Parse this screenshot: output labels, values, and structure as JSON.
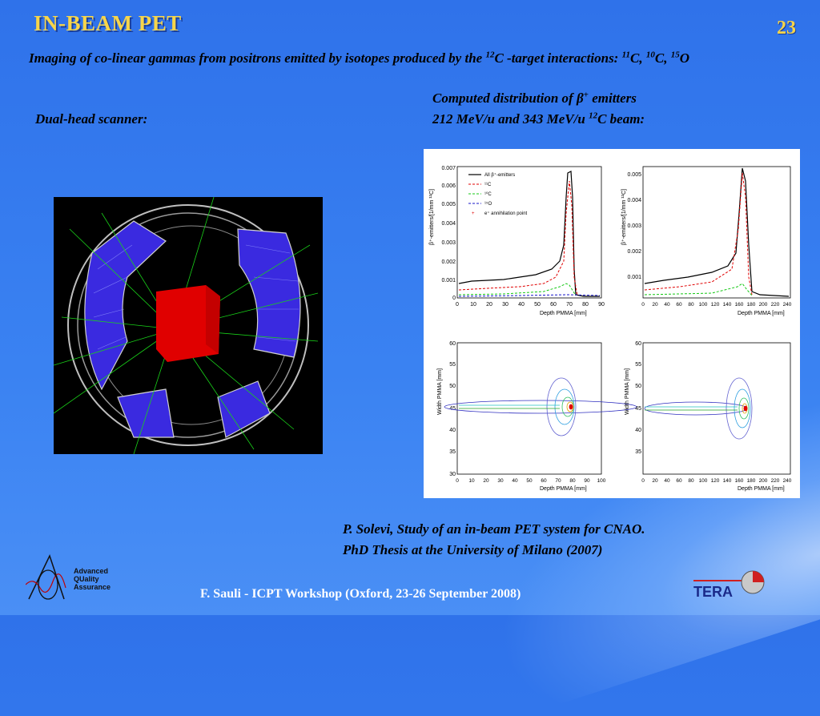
{
  "slide": {
    "title": "IN-BEAM PET",
    "number": "23",
    "intro_text": "Imaging of co-linear gammas from positrons emitted by isotopes produced by the ",
    "intro_sup1": "12",
    "intro_text2": "C -target interactions: ",
    "iso1_sup": "11",
    "iso1": "C, ",
    "iso2_sup": "10",
    "iso2": "C, ",
    "iso3_sup": "15",
    "iso3": "O",
    "computed_line1_a": "Computed distribution of ",
    "beta": "β",
    "beta_sup": "+",
    "computed_line1_b": " emitters",
    "computed_line2_a": "212 MeV/u and 343 MeV/u ",
    "computed_sup": "12",
    "computed_line2_b": "C  beam:",
    "dual_head": "Dual-head scanner:",
    "reference_line1": "P. Solevi, Study of an in-beam PET system for CNAO.",
    "reference_line2": "PhD Thesis at the University of Milano (2007)",
    "footer": "F. Sauli - ICPT Workshop (Oxford, 23-26 September 2008)"
  },
  "logos": {
    "aqa_line1": "Advanced",
    "aqa_line2": "QUality",
    "aqa_line3": "Assurance",
    "tera": "TERA"
  },
  "colors": {
    "title": "#f7d54a",
    "background": "#3a82f2",
    "detector": "#3a2ae0",
    "target": "#e00000",
    "rays": "#19d219"
  },
  "plots": {
    "tl": {
      "ylabel": "β⁺-emitters/[1/mm ¹²C]",
      "xlabel": "Depth PMMA [mm]",
      "yticks": [
        "0",
        "0.001",
        "0.002",
        "0.003",
        "0.004",
        "0.005",
        "0.006",
        "0.007"
      ],
      "xticks": [
        "0",
        "10",
        "20",
        "30",
        "40",
        "50",
        "60",
        "70",
        "80",
        "90"
      ],
      "legend": [
        "All β⁺-emitters",
        "¹¹C",
        "¹⁰C",
        "¹⁵O",
        "e⁺ annihilation point"
      ]
    },
    "tr": {
      "ylabel": "β⁺-emitters/[1/mm ¹²C]",
      "xlabel": "Depth PMMA [mm]",
      "yticks": [
        "0.001",
        "0.002",
        "0.003",
        "0.004",
        "0.005"
      ],
      "xticks": [
        "0",
        "20",
        "40",
        "60",
        "80",
        "100",
        "120",
        "140",
        "160",
        "180",
        "200",
        "220",
        "240"
      ]
    },
    "bl": {
      "ylabel": "Width PMMA [mm]",
      "xlabel": "Depth PMMA [mm]",
      "yticks": [
        "30",
        "35",
        "40",
        "45",
        "50",
        "55",
        "60"
      ],
      "xticks": [
        "0",
        "10",
        "20",
        "30",
        "40",
        "50",
        "60",
        "70",
        "80",
        "90",
        "100"
      ]
    },
    "br": {
      "ylabel": "Width PMMA [mm]",
      "xlabel": "Depth PMMA [mm]",
      "yticks": [
        "35",
        "40",
        "45",
        "50",
        "55",
        "60"
      ],
      "xticks": [
        "0",
        "20",
        "40",
        "60",
        "80",
        "100",
        "120",
        "140",
        "160",
        "180",
        "200",
        "220",
        "240"
      ]
    }
  }
}
